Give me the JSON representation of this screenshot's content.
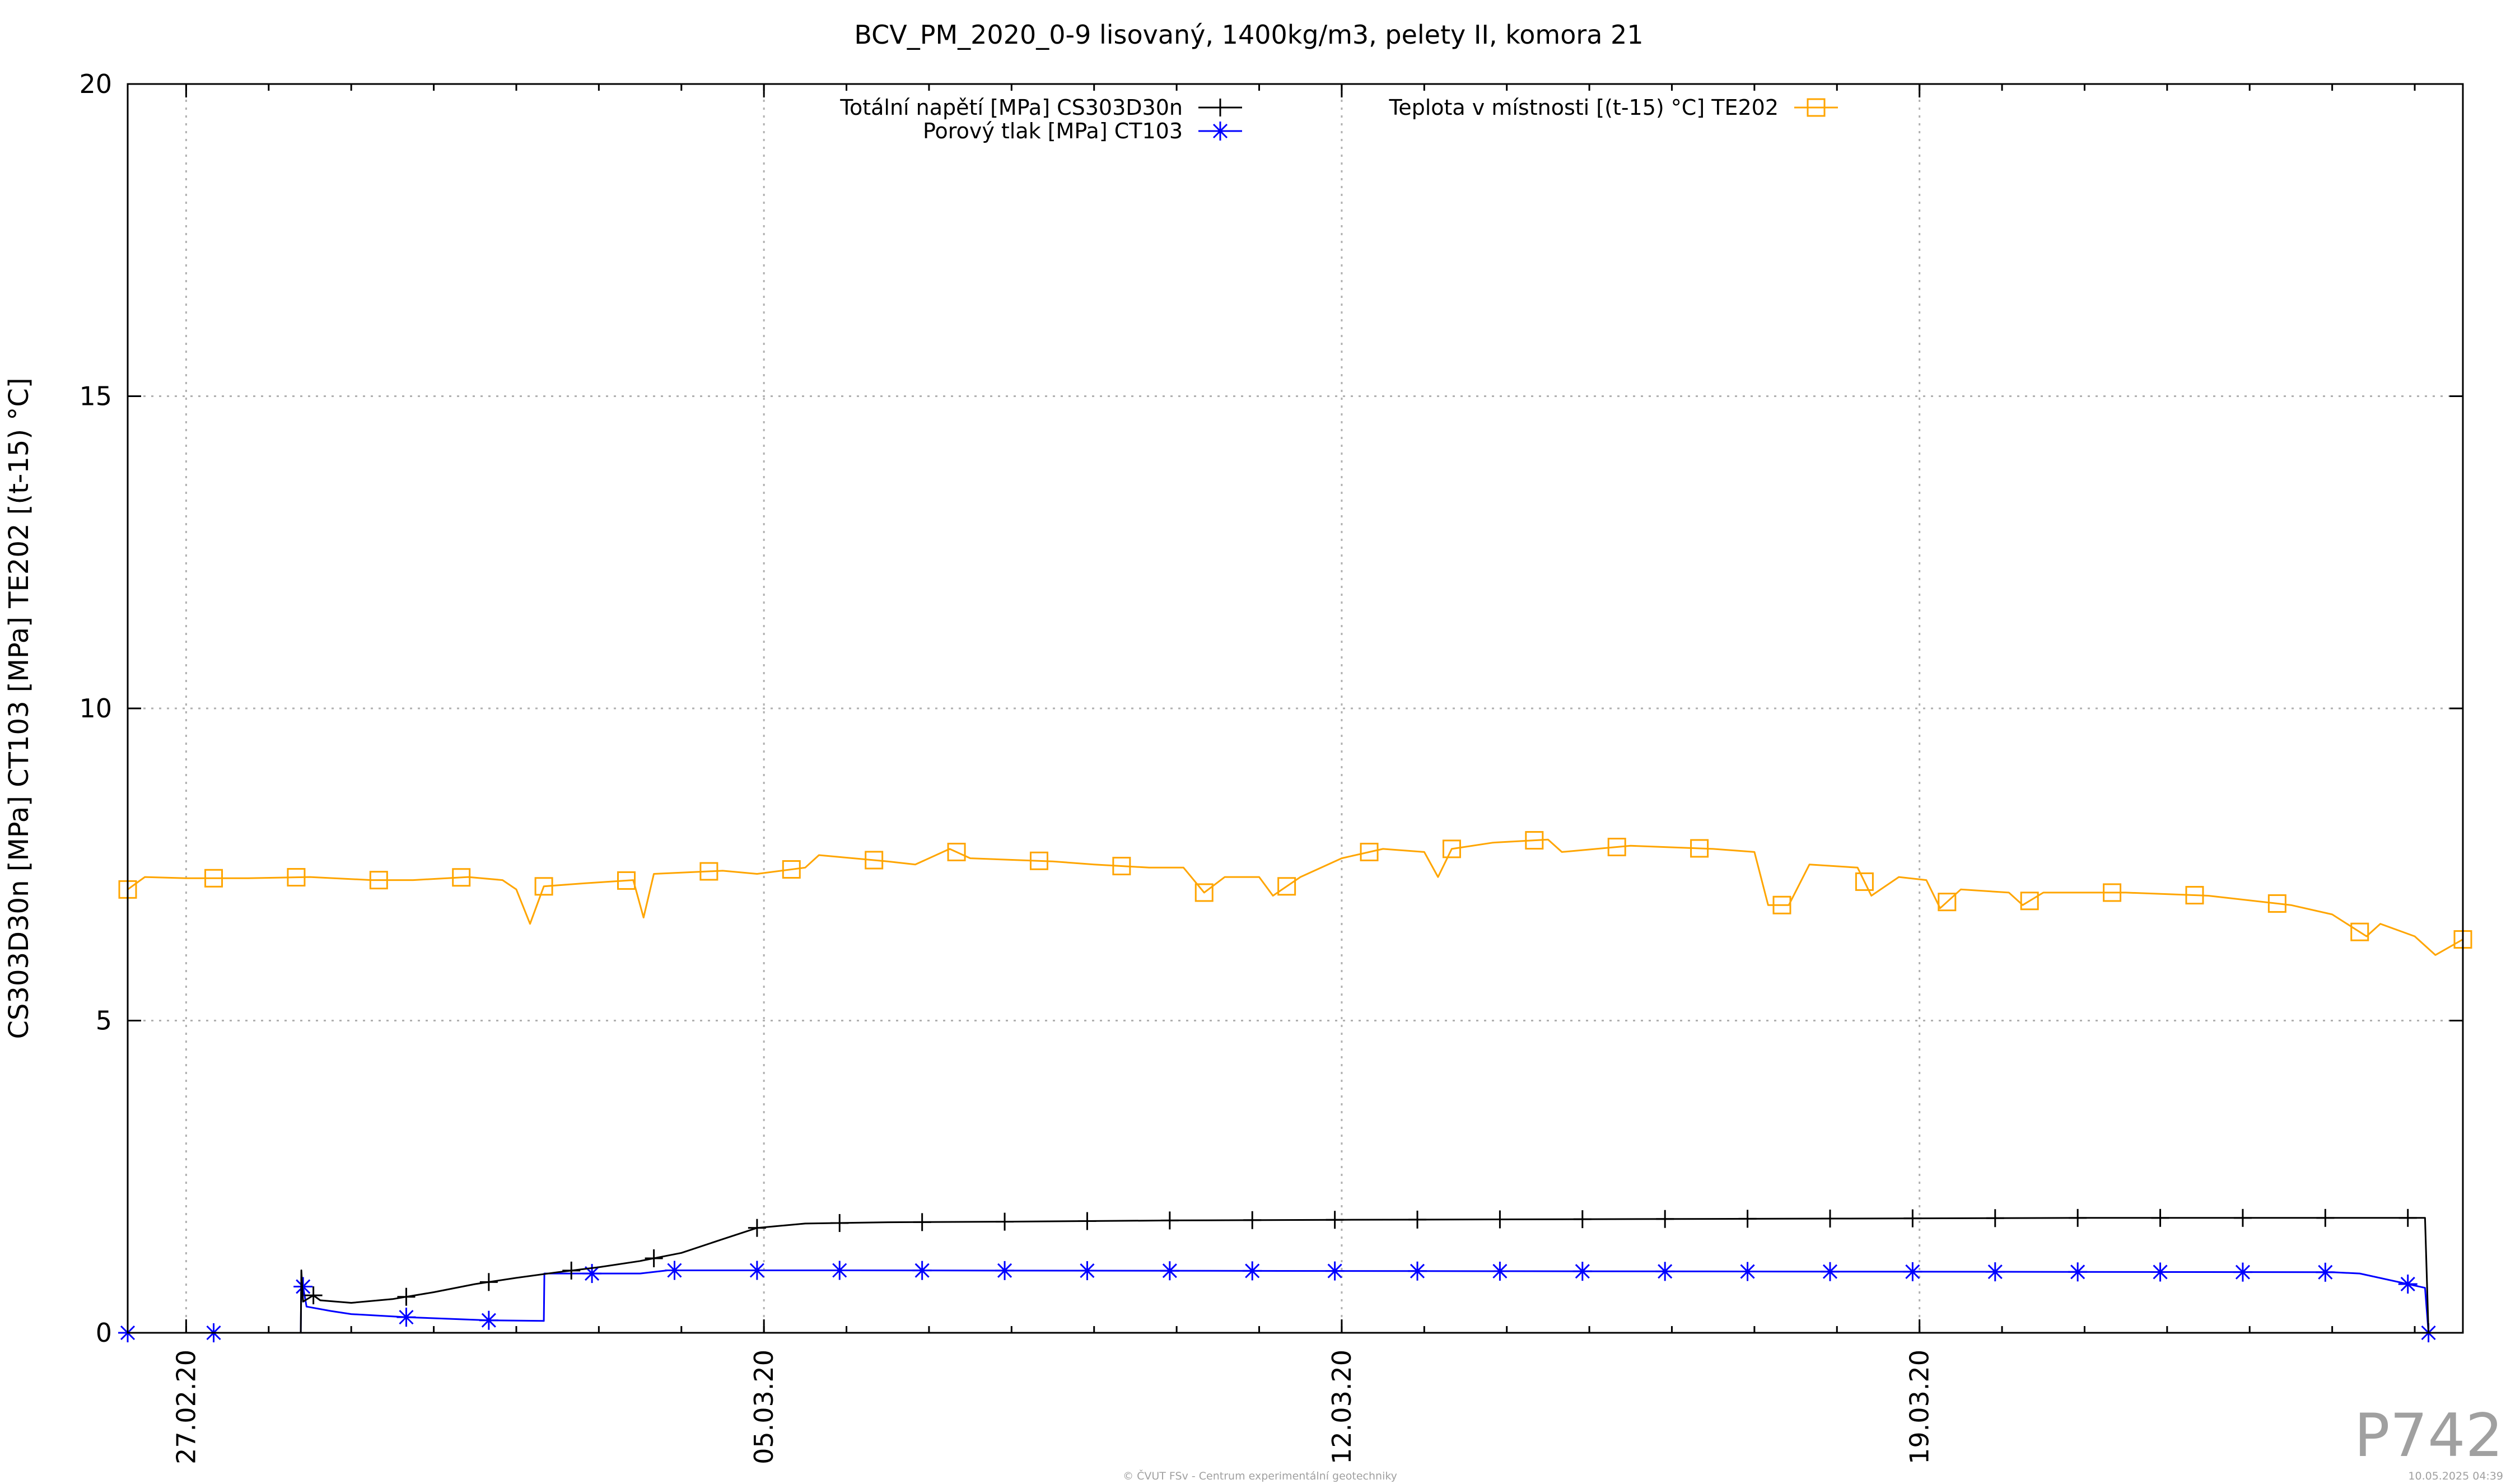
{
  "chart_data": {
    "type": "line",
    "title": "BCV_PM_2020_0-9 lisovaný, 1400kg/m3, pelety II, komora 21",
    "ylabel": "CS303D30n [MPa] CT103 [MPa] TE202 [(t-15) °C]",
    "xlabel": "",
    "ylim": [
      0,
      20
    ],
    "xlim": [
      "2020-02-26 07:00",
      "2020-03-25 14:00"
    ],
    "yticks": [
      0,
      5,
      10,
      15,
      20
    ],
    "xticks": [
      {
        "label": "27.02.20",
        "date": "2020-02-27 00:00"
      },
      {
        "label": "05.03.20",
        "date": "2020-03-05 00:00"
      },
      {
        "label": "12.03.20",
        "date": "2020-03-12 00:00"
      },
      {
        "label": "19.03.20",
        "date": "2020-03-19 00:00"
      }
    ],
    "grid": true,
    "legend_position": "top",
    "series": [
      {
        "name": "Totální napětí [MPa] CS303D30n",
        "key": "total_stress",
        "color": "#000000",
        "marker": "plus",
        "points": [
          [
            "2020-02-26 07:00",
            0
          ],
          [
            "2020-02-27 09:00",
            0
          ],
          [
            "2020-02-28 09:20",
            0
          ],
          [
            "2020-02-28 09:30",
            1.0
          ],
          [
            "2020-02-28 10:00",
            0.5
          ],
          [
            "2020-02-28 13:00",
            0.6
          ],
          [
            "2020-02-28 15:00",
            0.52
          ],
          [
            "2020-02-29 00:00",
            0.48
          ],
          [
            "2020-02-29 12:00",
            0.54
          ],
          [
            "2020-03-01 00:00",
            0.65
          ],
          [
            "2020-03-01 12:00",
            0.78
          ],
          [
            "2020-03-02 00:00",
            0.88
          ],
          [
            "2020-03-02 12:00",
            0.97
          ],
          [
            "2020-03-03 00:00",
            1.05
          ],
          [
            "2020-03-03 12:00",
            1.15
          ],
          [
            "2020-03-04 00:00",
            1.28
          ],
          [
            "2020-03-04 12:00",
            1.5
          ],
          [
            "2020-03-04 22:00",
            1.68
          ],
          [
            "2020-03-05 12:00",
            1.75
          ],
          [
            "2020-03-06 12:00",
            1.77
          ],
          [
            "2020-03-08 00:00",
            1.78
          ],
          [
            "2020-03-10 00:00",
            1.8
          ],
          [
            "2020-03-12 00:00",
            1.81
          ],
          [
            "2020-03-15 00:00",
            1.82
          ],
          [
            "2020-03-18 00:00",
            1.83
          ],
          [
            "2020-03-21 00:00",
            1.84
          ],
          [
            "2020-03-25 03:00",
            1.84
          ],
          [
            "2020-03-25 04:00",
            0
          ]
        ],
        "markers": [
          "2020-02-28 13:00",
          "2020-02-29 16:00",
          "2020-03-01 16:00",
          "2020-03-02 16:00",
          "2020-03-03 16:00",
          "2020-03-04 22:00",
          "2020-03-05 22:00",
          "2020-03-06 22:00",
          "2020-03-07 22:00",
          "2020-03-08 22:00",
          "2020-03-09 22:00",
          "2020-03-10 22:00",
          "2020-03-11 22:00",
          "2020-03-12 22:00",
          "2020-03-13 22:00",
          "2020-03-14 22:00",
          "2020-03-15 22:00",
          "2020-03-16 22:00",
          "2020-03-17 22:00",
          "2020-03-18 22:00",
          "2020-03-19 22:00",
          "2020-03-20 22:00",
          "2020-03-21 22:00",
          "2020-03-22 22:00",
          "2020-03-23 22:00",
          "2020-03-24 22:00"
        ]
      },
      {
        "name": "Porový tlak [MPa] CT103",
        "key": "pore_pressure",
        "color": "#0000ff",
        "marker": "star",
        "points": [
          [
            "2020-02-26 07:00",
            0
          ],
          [
            "2020-02-28 09:20",
            0
          ],
          [
            "2020-02-28 09:30",
            0.9
          ],
          [
            "2020-02-28 11:00",
            0.42
          ],
          [
            "2020-02-28 18:00",
            0.35
          ],
          [
            "2020-02-29 00:00",
            0.3
          ],
          [
            "2020-02-29 16:00",
            0.25
          ],
          [
            "2020-03-01 16:00",
            0.2
          ],
          [
            "2020-03-02 08:00",
            0.19
          ],
          [
            "2020-03-02 08:10",
            0.95
          ],
          [
            "2020-03-03 12:00",
            0.95
          ],
          [
            "2020-03-03 20:00",
            1.0
          ],
          [
            "2020-03-06 00:00",
            1.0
          ],
          [
            "2020-03-12 00:00",
            0.99
          ],
          [
            "2020-03-18 00:00",
            0.98
          ],
          [
            "2020-03-24 00:00",
            0.97
          ],
          [
            "2020-03-24 08:00",
            0.95
          ],
          [
            "2020-03-25 03:00",
            0.72
          ],
          [
            "2020-03-25 04:00",
            0
          ]
        ],
        "markers": [
          "2020-02-26 07:00",
          "2020-02-27 08:00",
          "2020-02-28 10:00",
          "2020-02-29 16:00",
          "2020-03-01 16:00",
          "2020-03-02 22:00",
          "2020-03-03 22:00",
          "2020-03-04 22:00",
          "2020-03-05 22:00",
          "2020-03-06 22:00",
          "2020-03-07 22:00",
          "2020-03-08 22:00",
          "2020-03-09 22:00",
          "2020-03-10 22:00",
          "2020-03-11 22:00",
          "2020-03-12 22:00",
          "2020-03-13 22:00",
          "2020-03-14 22:00",
          "2020-03-15 22:00",
          "2020-03-16 22:00",
          "2020-03-17 22:00",
          "2020-03-18 22:00",
          "2020-03-19 22:00",
          "2020-03-20 22:00",
          "2020-03-21 22:00",
          "2020-03-22 22:00",
          "2020-03-23 22:00",
          "2020-03-24 22:00",
          "2020-03-25 04:00"
        ]
      },
      {
        "name": "Teplota v místnosti [(t-15) °C] TE202",
        "key": "room_temperature",
        "color": "#ffa500",
        "marker": "square",
        "points": [
          [
            "2020-02-26 07:00",
            7.1
          ],
          [
            "2020-02-26 12:00",
            7.3
          ],
          [
            "2020-02-27 00:00",
            7.28
          ],
          [
            "2020-02-27 18:00",
            7.28
          ],
          [
            "2020-02-28 12:00",
            7.3
          ],
          [
            "2020-02-29 06:00",
            7.25
          ],
          [
            "2020-02-29 18:00",
            7.25
          ],
          [
            "2020-03-01 10:00",
            7.3
          ],
          [
            "2020-03-01 20:00",
            7.25
          ],
          [
            "2020-03-02 00:00",
            7.1
          ],
          [
            "2020-03-02 04:00",
            6.55
          ],
          [
            "2020-03-02 08:00",
            7.15
          ],
          [
            "2020-03-02 20:00",
            7.2
          ],
          [
            "2020-03-03 10:00",
            7.25
          ],
          [
            "2020-03-03 13:00",
            6.65
          ],
          [
            "2020-03-03 16:00",
            7.35
          ],
          [
            "2020-03-04 12:00",
            7.4
          ],
          [
            "2020-03-04 22:00",
            7.35
          ],
          [
            "2020-03-05 12:00",
            7.45
          ],
          [
            "2020-03-05 16:00",
            7.65
          ],
          [
            "2020-03-06 12:00",
            7.55
          ],
          [
            "2020-03-06 20:00",
            7.5
          ],
          [
            "2020-03-07 06:00",
            7.75
          ],
          [
            "2020-03-07 12:00",
            7.6
          ],
          [
            "2020-03-08 12:00",
            7.55
          ],
          [
            "2020-03-09 00:00",
            7.5
          ],
          [
            "2020-03-09 16:00",
            7.45
          ],
          [
            "2020-03-10 02:00",
            7.45
          ],
          [
            "2020-03-10 08:00",
            7.05
          ],
          [
            "2020-03-10 14:00",
            7.3
          ],
          [
            "2020-03-11 00:00",
            7.3
          ],
          [
            "2020-03-11 04:00",
            7.0
          ],
          [
            "2020-03-11 12:00",
            7.3
          ],
          [
            "2020-03-12 00:00",
            7.6
          ],
          [
            "2020-03-12 12:00",
            7.75
          ],
          [
            "2020-03-13 00:00",
            7.7
          ],
          [
            "2020-03-13 04:00",
            7.3
          ],
          [
            "2020-03-13 08:00",
            7.75
          ],
          [
            "2020-03-13 20:00",
            7.85
          ],
          [
            "2020-03-14 12:00",
            7.9
          ],
          [
            "2020-03-14 16:00",
            7.7
          ],
          [
            "2020-03-15 12:00",
            7.8
          ],
          [
            "2020-03-16 12:00",
            7.75
          ],
          [
            "2020-03-17 00:00",
            7.7
          ],
          [
            "2020-03-17 04:00",
            6.85
          ],
          [
            "2020-03-17 10:00",
            6.85
          ],
          [
            "2020-03-17 16:00",
            7.5
          ],
          [
            "2020-03-18 06:00",
            7.45
          ],
          [
            "2020-03-18 10:00",
            7.0
          ],
          [
            "2020-03-18 18:00",
            7.3
          ],
          [
            "2020-03-19 02:00",
            7.25
          ],
          [
            "2020-03-19 06:00",
            6.8
          ],
          [
            "2020-03-19 12:00",
            7.1
          ],
          [
            "2020-03-20 02:00",
            7.05
          ],
          [
            "2020-03-20 06:00",
            6.85
          ],
          [
            "2020-03-20 12:00",
            7.05
          ],
          [
            "2020-03-21 12:00",
            7.05
          ],
          [
            "2020-03-22 12:00",
            7.0
          ],
          [
            "2020-03-23 12:00",
            6.85
          ],
          [
            "2020-03-24 00:00",
            6.7
          ],
          [
            "2020-03-24 10:00",
            6.35
          ],
          [
            "2020-03-24 14:00",
            6.55
          ],
          [
            "2020-03-25 00:00",
            6.35
          ],
          [
            "2020-03-25 06:00",
            6.05
          ],
          [
            "2020-03-25 14:00",
            6.3
          ]
        ],
        "markers": [
          "2020-02-26 07:00",
          "2020-02-27 08:00",
          "2020-02-28 08:00",
          "2020-02-29 08:00",
          "2020-03-01 08:00",
          "2020-03-02 08:00",
          "2020-03-03 08:00",
          "2020-03-04 08:00",
          "2020-03-05 08:00",
          "2020-03-06 08:00",
          "2020-03-07 08:00",
          "2020-03-08 08:00",
          "2020-03-09 08:00",
          "2020-03-10 08:00",
          "2020-03-11 08:00",
          "2020-03-12 08:00",
          "2020-03-13 08:00",
          "2020-03-14 08:00",
          "2020-03-15 08:00",
          "2020-03-16 08:00",
          "2020-03-17 08:00",
          "2020-03-18 08:00",
          "2020-03-19 08:00",
          "2020-03-20 08:00",
          "2020-03-21 08:00",
          "2020-03-22 08:00",
          "2020-03-23 08:00",
          "2020-03-24 08:00",
          "2020-03-25 14:00"
        ]
      }
    ]
  },
  "badge": "P742",
  "footer": {
    "copyright": "© ČVUT FSv - Centrum experimentální geotechniky",
    "timestamp": "10.05.2025 04:39"
  }
}
